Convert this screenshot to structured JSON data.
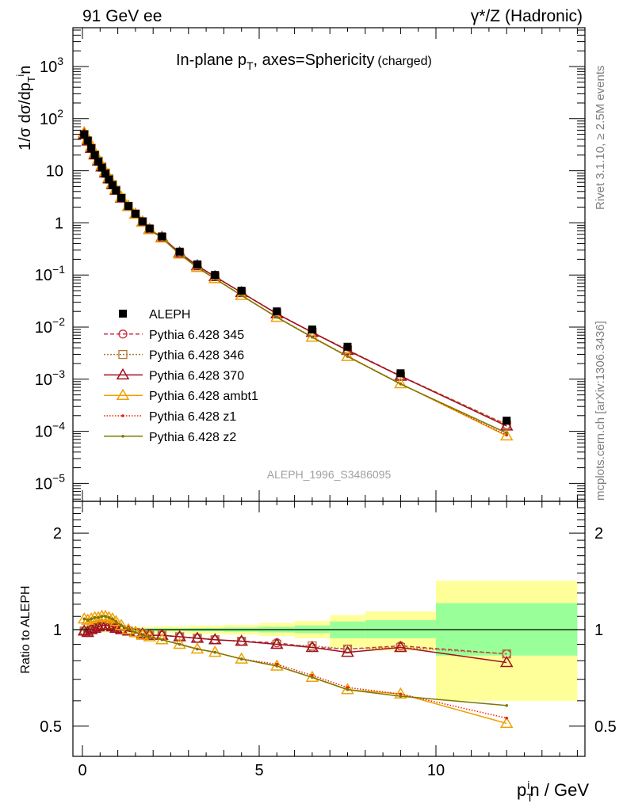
{
  "header": {
    "left": "91 GeV ee",
    "right": "γ*/Z (Hadronic)"
  },
  "side_text": {
    "rivet": "Rivet 3.1.10, ≥ 2.5M events",
    "mcplots": "mcplots.cern.ch [arXiv:1306.3436]"
  },
  "watermark": "ALEPH_1996_S3486095",
  "chart_data": [
    {
      "type": "line",
      "panel": "main",
      "title": "In-plane p_T, axes=Sphericity (charged)",
      "title_parts": {
        "main": "In-plane p",
        "sub": "T",
        "rest": ", axes=Sphericity",
        "small": "(charged)"
      },
      "ylabel": "1/σ dσ/dp_T^i n",
      "ylabel_parts": {
        "a": "1/σ dσ/dp",
        "sub": "T",
        "sup": "i",
        "b": "n"
      },
      "yscale": "log",
      "ylim": [
        4.5e-06,
        5600
      ],
      "xlim": [
        -0.27,
        14.3
      ],
      "ytick_labels": [
        {
          "v": 1000,
          "base": "10",
          "exp": "3"
        },
        {
          "v": 100,
          "base": "10",
          "exp": "2"
        },
        {
          "v": 10,
          "base": "10",
          "exp": ""
        },
        {
          "v": 1,
          "base": "1",
          "exp": ""
        },
        {
          "v": 0.1,
          "base": "10",
          "exp": "−1"
        },
        {
          "v": 0.01,
          "base": "10",
          "exp": "−2"
        },
        {
          "v": 0.001,
          "base": "10",
          "exp": "−3"
        },
        {
          "v": 0.0001,
          "base": "10",
          "exp": "−4"
        },
        {
          "v": 1e-05,
          "base": "10",
          "exp": "−5"
        }
      ],
      "legend_position": "middle-left",
      "x": [
        0.05,
        0.15,
        0.25,
        0.35,
        0.45,
        0.55,
        0.65,
        0.75,
        0.85,
        0.95,
        1.1,
        1.3,
        1.5,
        1.7,
        1.9,
        2.25,
        2.75,
        3.25,
        3.75,
        4.5,
        5.5,
        6.5,
        7.5,
        9,
        12
      ],
      "bin_edges": [
        0,
        0.1,
        0.2,
        0.3,
        0.4,
        0.5,
        0.6,
        0.7,
        0.8,
        0.9,
        1.0,
        1.2,
        1.4,
        1.6,
        1.8,
        2.0,
        2.5,
        3.0,
        3.5,
        4.0,
        5,
        6,
        7,
        8,
        10,
        14
      ],
      "data": {
        "name": "ALEPH",
        "values": [
          50,
          38,
          27,
          20,
          15,
          11.5,
          8.8,
          6.8,
          5.3,
          4.2,
          3.0,
          2.1,
          1.5,
          1.07,
          0.78,
          0.55,
          0.28,
          0.16,
          0.1,
          0.05,
          0.02,
          0.009,
          0.0042,
          0.0013,
          0.00016
        ]
      },
      "series": [
        {
          "name": "Pythia 6.428 345",
          "color": "#c8304a",
          "marker": "circle",
          "dash": "5,3",
          "ratio": [
            0.99,
            0.98,
            1.0,
            1.01,
            1.02,
            1.03,
            1.03,
            1.03,
            1.02,
            1.01,
            1.0,
            0.99,
            0.98,
            0.97,
            0.96,
            0.96,
            0.95,
            0.94,
            0.93,
            0.92,
            0.91,
            0.88,
            0.87,
            0.89,
            0.84
          ]
        },
        {
          "name": "Pythia 6.428 346",
          "color": "#b07830",
          "marker": "square",
          "dash": "2,2",
          "ratio": [
            0.99,
            0.98,
            1.0,
            1.01,
            1.02,
            1.03,
            1.03,
            1.03,
            1.02,
            1.01,
            1.0,
            0.99,
            0.98,
            0.97,
            0.96,
            0.96,
            0.95,
            0.94,
            0.93,
            0.92,
            0.9,
            0.89,
            0.87,
            0.88,
            0.84
          ]
        },
        {
          "name": "Pythia 6.428 370",
          "color": "#a01020",
          "marker": "triangle",
          "dash": "",
          "ratio": [
            0.99,
            0.98,
            1.0,
            1.01,
            1.02,
            1.03,
            1.03,
            1.03,
            1.02,
            1.01,
            1.0,
            0.99,
            0.98,
            0.97,
            0.96,
            0.96,
            0.95,
            0.94,
            0.93,
            0.92,
            0.9,
            0.88,
            0.85,
            0.88,
            0.79
          ]
        },
        {
          "name": "Pythia 6.428 ambt1",
          "color": "#f0a000",
          "marker": "triangle",
          "dash": "",
          "ratio": [
            1.08,
            1.07,
            1.08,
            1.09,
            1.09,
            1.1,
            1.1,
            1.09,
            1.08,
            1.06,
            1.03,
            1.0,
            0.98,
            0.96,
            0.95,
            0.93,
            0.9,
            0.87,
            0.85,
            0.81,
            0.77,
            0.71,
            0.65,
            0.63,
            0.51
          ]
        },
        {
          "name": "Pythia 6.428 z1",
          "color": "#ee2200",
          "marker": "dot",
          "dash": "1.5,2",
          "ratio": [
            1.08,
            1.07,
            1.08,
            1.09,
            1.09,
            1.1,
            1.1,
            1.09,
            1.08,
            1.06,
            1.03,
            1.0,
            0.98,
            0.96,
            0.95,
            0.93,
            0.9,
            0.87,
            0.85,
            0.81,
            0.78,
            0.72,
            0.66,
            0.63,
            0.53
          ]
        },
        {
          "name": "Pythia 6.428 z2",
          "color": "#7a7a00",
          "marker": "dot",
          "dash": "",
          "ratio": [
            1.08,
            1.07,
            1.08,
            1.09,
            1.09,
            1.1,
            1.1,
            1.09,
            1.08,
            1.06,
            1.03,
            1.0,
            0.98,
            0.96,
            0.95,
            0.93,
            0.9,
            0.87,
            0.85,
            0.81,
            0.77,
            0.71,
            0.65,
            0.62,
            0.58
          ]
        }
      ]
    },
    {
      "type": "line",
      "panel": "ratio",
      "ylabel": "Ratio to ALEPH",
      "yscale": "log",
      "ylim": [
        0.403,
        2.51
      ],
      "ytick_labels": [
        "0.5",
        "1",
        "2"
      ],
      "ytick_values": [
        0.5,
        1,
        2
      ],
      "xlabel_parts": {
        "a": "p",
        "sub": "T",
        "sup": "i",
        "b": "n / GeV"
      },
      "xtick_labels": [
        "0",
        "5",
        "10"
      ],
      "xtick_values": [
        0,
        5,
        10
      ],
      "bands": {
        "edges": [
          0,
          2,
          3,
          4,
          5,
          6,
          7,
          8,
          10,
          14
        ],
        "total_hi": [
          1.02,
          1.025,
          1.03,
          1.035,
          1.05,
          1.065,
          1.11,
          1.14,
          1.42
        ],
        "total_lo": [
          0.98,
          0.975,
          0.97,
          0.965,
          0.955,
          0.94,
          0.88,
          0.86,
          0.6
        ],
        "stat_hi": [
          1.01,
          1.01,
          1.012,
          1.015,
          1.02,
          1.03,
          1.06,
          1.07,
          1.21
        ],
        "stat_lo": [
          0.99,
          0.99,
          0.988,
          0.985,
          0.98,
          0.975,
          0.94,
          0.94,
          0.83
        ],
        "total_color": "#ffff99",
        "stat_color": "#99ff99"
      }
    }
  ]
}
